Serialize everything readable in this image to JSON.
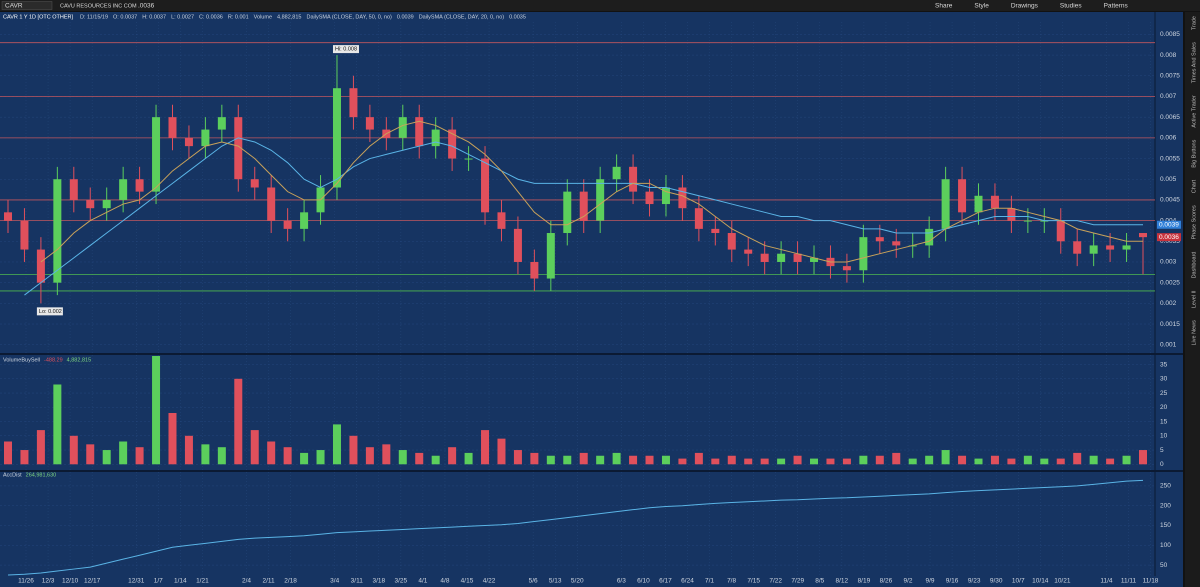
{
  "toolbar": {
    "symbol": "CAVR",
    "company": "CAVU RESOURCES INC COM",
    "last": ".0036",
    "buttons": [
      "Share",
      "Style",
      "Drawings",
      "Studies",
      "Patterns"
    ]
  },
  "header": {
    "title": "CAVR 1 Y 1D [OTC OTHER]",
    "items": [
      "D: 11/15/19",
      "O: 0.0037",
      "H: 0.0037",
      "L: 0.0027",
      "C: 0.0036",
      "R: 0.001",
      "Volume",
      "4,882,815",
      "DailySMA (CLOSE, DAY, 50, 0, no)",
      "0.0039",
      "DailySMA (CLOSE, DAY, 20, 0, no)",
      "0.0035"
    ]
  },
  "sidebar": [
    "Trade",
    "Times And Sales",
    "Active Trader",
    "Big Buttons",
    "Chart",
    "Phase Scores",
    "Dashboard",
    "Level II",
    "Live News"
  ],
  "xaxis": {
    "labels": [
      "11/26",
      "12/3",
      "12/10",
      "12/17",
      "12/31",
      "1/7",
      "1/14",
      "1/21",
      "2/4",
      "2/11",
      "2/18",
      "3/4",
      "3/11",
      "3/18",
      "3/25",
      "4/1",
      "4/8",
      "4/15",
      "4/22",
      "5/6",
      "5/13",
      "5/20",
      "6/3",
      "6/10",
      "6/17",
      "6/24",
      "7/1",
      "7/8",
      "7/15",
      "7/22",
      "7/29",
      "8/5",
      "8/12",
      "8/19",
      "8/26",
      "9/2",
      "9/9",
      "9/16",
      "9/23",
      "9/30",
      "10/7",
      "10/14",
      "10/21",
      "11/4",
      "11/11",
      "11/18"
    ]
  },
  "chart_data": [
    {
      "type": "candlestick",
      "hi_label": "Hi: 0.008",
      "lo_label": "Lo: 0.002",
      "price_tags": [
        {
          "label": "0.0039",
          "value": 0.0039,
          "color": "#2f7fd8"
        },
        {
          "label": "0.0036",
          "value": 0.0036,
          "color": "#c8323c"
        }
      ],
      "ylim": [
        0.0008,
        0.0088
      ],
      "yticks": [
        0.001,
        0.0015,
        0.002,
        0.0025,
        0.003,
        0.0035,
        0.004,
        0.0045,
        0.005,
        0.0055,
        0.006,
        0.0065,
        0.007,
        0.0075,
        0.008,
        0.0085
      ],
      "resistance_lines": [
        0.0083,
        0.007,
        0.006,
        0.0045,
        0.004
      ],
      "support_lines": [
        0.0027,
        0.0023
      ],
      "up_color": "#5ccf5c",
      "down_color": "#e0505c",
      "open": [
        0.0042,
        0.004,
        0.0033,
        0.0025,
        0.005,
        0.0045,
        0.0043,
        0.0045,
        0.005,
        0.0047,
        0.0065,
        0.006,
        0.0058,
        0.0062,
        0.0065,
        0.005,
        0.0048,
        0.004,
        0.0038,
        0.0042,
        0.0048,
        0.0072,
        0.0065,
        0.0062,
        0.006,
        0.0065,
        0.0058,
        0.0062,
        0.0055,
        0.0055,
        0.0042,
        0.0038,
        0.003,
        0.0026,
        0.0037,
        0.0047,
        0.004,
        0.005,
        0.0053,
        0.0047,
        0.0044,
        0.0048,
        0.0043,
        0.0038,
        0.0037,
        0.0033,
        0.0032,
        0.003,
        0.0032,
        0.003,
        0.0031,
        0.0029,
        0.0028,
        0.0036,
        0.0035,
        0.0034,
        0.0034,
        0.0038,
        0.005,
        0.0042,
        0.0046,
        0.0043,
        0.004,
        0.004,
        0.004,
        0.0035,
        0.0032,
        0.0034,
        0.0033,
        0.0037
      ],
      "high": [
        0.0045,
        0.0043,
        0.0036,
        0.0053,
        0.0053,
        0.0048,
        0.0048,
        0.0053,
        0.0053,
        0.0068,
        0.0068,
        0.0063,
        0.0065,
        0.0068,
        0.0068,
        0.0053,
        0.0051,
        0.0043,
        0.0045,
        0.0051,
        0.008,
        0.0075,
        0.0068,
        0.0065,
        0.0068,
        0.0068,
        0.0065,
        0.0065,
        0.0058,
        0.0058,
        0.0045,
        0.0041,
        0.0033,
        0.004,
        0.005,
        0.005,
        0.0053,
        0.0056,
        0.0056,
        0.005,
        0.0051,
        0.0051,
        0.0046,
        0.0041,
        0.004,
        0.0036,
        0.0035,
        0.0035,
        0.0035,
        0.0034,
        0.0034,
        0.0032,
        0.0039,
        0.0039,
        0.0038,
        0.0037,
        0.0041,
        0.0053,
        0.0053,
        0.0049,
        0.0049,
        0.0046,
        0.0043,
        0.0043,
        0.0043,
        0.0038,
        0.0037,
        0.0037,
        0.0037,
        0.0037
      ],
      "low": [
        0.0037,
        0.003,
        0.002,
        0.0022,
        0.0042,
        0.004,
        0.004,
        0.0042,
        0.0044,
        0.0044,
        0.0057,
        0.0055,
        0.0055,
        0.0059,
        0.0047,
        0.0045,
        0.0037,
        0.0035,
        0.0035,
        0.0039,
        0.0045,
        0.0062,
        0.0059,
        0.0057,
        0.0057,
        0.0055,
        0.0055,
        0.0052,
        0.0052,
        0.0039,
        0.0035,
        0.0027,
        0.0023,
        0.0023,
        0.0034,
        0.0037,
        0.0037,
        0.0047,
        0.0044,
        0.0041,
        0.0041,
        0.004,
        0.0035,
        0.0034,
        0.003,
        0.0029,
        0.0027,
        0.0027,
        0.0027,
        0.0027,
        0.0026,
        0.0025,
        0.0025,
        0.0032,
        0.0031,
        0.0031,
        0.0031,
        0.0035,
        0.0039,
        0.0039,
        0.004,
        0.0037,
        0.0037,
        0.0037,
        0.0032,
        0.0029,
        0.0029,
        0.003,
        0.003,
        0.0027
      ],
      "close": [
        0.004,
        0.0033,
        0.0025,
        0.005,
        0.0045,
        0.0043,
        0.0045,
        0.005,
        0.0047,
        0.0065,
        0.006,
        0.0058,
        0.0062,
        0.0065,
        0.005,
        0.0048,
        0.004,
        0.0038,
        0.0042,
        0.0048,
        0.0072,
        0.0065,
        0.0062,
        0.006,
        0.0065,
        0.0058,
        0.0062,
        0.0055,
        0.0055,
        0.0042,
        0.0038,
        0.003,
        0.0026,
        0.0037,
        0.0047,
        0.004,
        0.005,
        0.0053,
        0.0047,
        0.0044,
        0.0048,
        0.0043,
        0.0038,
        0.0037,
        0.0033,
        0.0032,
        0.003,
        0.0032,
        0.003,
        0.0031,
        0.0029,
        0.0028,
        0.0036,
        0.0035,
        0.0034,
        0.0034,
        0.0038,
        0.005,
        0.0042,
        0.0046,
        0.0043,
        0.004,
        0.004,
        0.004,
        0.0035,
        0.0032,
        0.0034,
        0.0033,
        0.0034,
        0.0036
      ],
      "series": [
        {
          "name": "DailySMA (CLOSE, DAY, 50, 0, no)",
          "color": "#5ab4e6",
          "values": [
            null,
            0.0022,
            0.0025,
            0.0028,
            0.0031,
            0.0034,
            0.0037,
            0.004,
            0.0043,
            0.0046,
            0.0049,
            0.0052,
            0.0055,
            0.0058,
            0.006,
            0.0059,
            0.0057,
            0.0054,
            0.005,
            0.0048,
            0.005,
            0.0053,
            0.0055,
            0.0056,
            0.0057,
            0.0058,
            0.0059,
            0.0058,
            0.0056,
            0.0054,
            0.0052,
            0.005,
            0.0049,
            0.0049,
            0.0049,
            0.0049,
            0.0049,
            0.0049,
            0.0049,
            0.0048,
            0.0048,
            0.0047,
            0.0046,
            0.0045,
            0.0044,
            0.0043,
            0.0042,
            0.0041,
            0.0041,
            0.004,
            0.004,
            0.0039,
            0.0038,
            0.0038,
            0.0037,
            0.0037,
            0.0037,
            0.0038,
            0.0039,
            0.004,
            0.0041,
            0.0041,
            0.0041,
            0.004,
            0.004,
            0.004,
            0.0039,
            0.0039,
            0.0039,
            0.0039
          ]
        },
        {
          "name": "DailySMA (CLOSE, DAY, 20, 0, no)",
          "color": "#c9a25a",
          "values": [
            null,
            null,
            0.003,
            0.0033,
            0.0037,
            0.004,
            0.0042,
            0.0044,
            0.0045,
            0.0048,
            0.0052,
            0.0055,
            0.0058,
            0.0059,
            0.0058,
            0.0055,
            0.0051,
            0.0047,
            0.0045,
            0.0045,
            0.0049,
            0.0054,
            0.0058,
            0.0061,
            0.0063,
            0.0064,
            0.0063,
            0.0061,
            0.0059,
            0.0056,
            0.0052,
            0.0047,
            0.0042,
            0.0039,
            0.0039,
            0.0041,
            0.0044,
            0.0047,
            0.0049,
            0.0049,
            0.0047,
            0.0046,
            0.0044,
            0.0041,
            0.0038,
            0.0036,
            0.0034,
            0.0033,
            0.0032,
            0.0031,
            0.003,
            0.003,
            0.0031,
            0.0032,
            0.0033,
            0.0034,
            0.0035,
            0.0038,
            0.004,
            0.0042,
            0.0043,
            0.0043,
            0.0042,
            0.0041,
            0.004,
            0.0038,
            0.0037,
            0.0036,
            0.0035,
            0.0035
          ]
        }
      ]
    },
    {
      "type": "bar",
      "title": "VolumeBuySell",
      "title_values": [
        "-488.29",
        "4,882,815"
      ],
      "ylim": [
        -2,
        38
      ],
      "yticks": [
        0,
        5,
        10,
        15,
        20,
        25,
        30,
        35
      ],
      "values": [
        8,
        5,
        12,
        28,
        10,
        7,
        5,
        8,
        6,
        38,
        18,
        10,
        7,
        6,
        30,
        12,
        8,
        6,
        4,
        5,
        14,
        10,
        6,
        7,
        5,
        4,
        3,
        6,
        4,
        12,
        9,
        5,
        4,
        3,
        3,
        4,
        3,
        4,
        3,
        3,
        3,
        2,
        4,
        2,
        3,
        2,
        2,
        2,
        3,
        2,
        2,
        2,
        3,
        3,
        4,
        2,
        3,
        5,
        3,
        2,
        3,
        2,
        3,
        2,
        2,
        4,
        3,
        2,
        3,
        5
      ]
    },
    {
      "type": "line",
      "title": "AccDist",
      "title_values": [
        "264,981,630"
      ],
      "color": "#5ab4e6",
      "ylim": [
        25,
        270
      ],
      "yticks": [
        50,
        100,
        150,
        200,
        250
      ],
      "values": [
        25,
        27,
        30,
        35,
        40,
        45,
        55,
        65,
        75,
        85,
        95,
        100,
        105,
        110,
        115,
        118,
        120,
        122,
        124,
        128,
        132,
        134,
        136,
        138,
        140,
        142,
        144,
        146,
        148,
        150,
        152,
        155,
        160,
        165,
        170,
        175,
        180,
        185,
        190,
        195,
        198,
        200,
        203,
        206,
        208,
        210,
        212,
        214,
        215,
        217,
        219,
        220,
        222,
        224,
        226,
        228,
        230,
        233,
        236,
        238,
        240,
        242,
        244,
        246,
        248,
        250,
        254,
        258,
        262,
        264
      ]
    }
  ]
}
